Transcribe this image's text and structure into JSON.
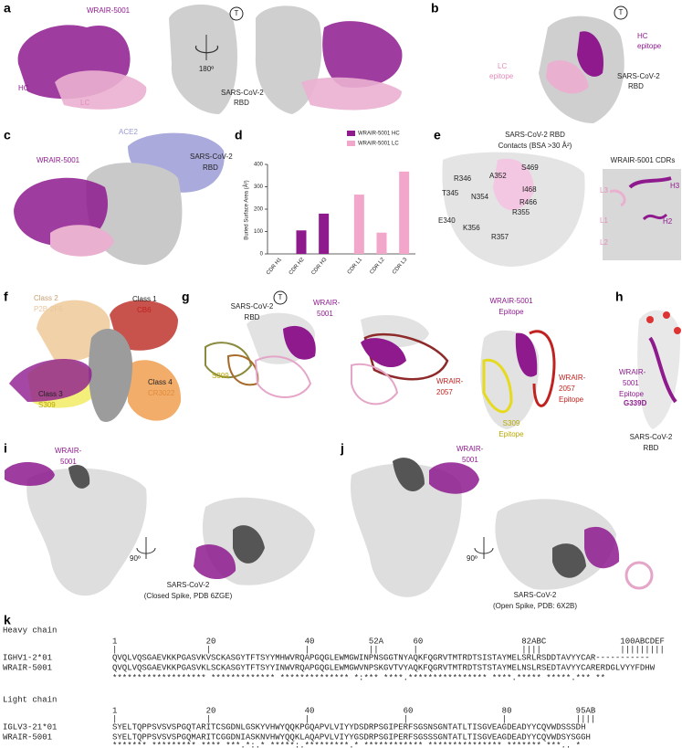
{
  "panel_labels": [
    "a",
    "b",
    "c",
    "d",
    "e",
    "f",
    "g",
    "h",
    "i",
    "j",
    "k"
  ],
  "panel_a": {
    "antibody": "WRAIR-5001",
    "terminus": "T",
    "rotation": "180º",
    "rbd": [
      "SARS-CoV-2",
      "RBD"
    ],
    "heavy_chain": "HC",
    "light_chain": "LC"
  },
  "panel_b": {
    "terminus": "T",
    "hc_epitope": [
      "HC",
      "epitope"
    ],
    "lc_epitope": [
      "LC",
      "epitope"
    ],
    "rbd": [
      "SARS-CoV-2",
      "RBD"
    ]
  },
  "panel_c": {
    "ace2": "ACE2",
    "antibody": "WRAIR-5001",
    "rbd": [
      "SARS-CoV-2",
      "RBD"
    ]
  },
  "chart_data": {
    "type": "bar",
    "ylabel": "Buried Surface Area (Å²)",
    "categories": [
      "CDR H1",
      "CDR H2",
      "CDR H3",
      "CDR L1",
      "CDR L2",
      "CDR L3"
    ],
    "series": [
      {
        "name": "WRAIR-5001 HC",
        "color": "#8e1a8e",
        "values": [
          0,
          105,
          180,
          null,
          null,
          null
        ]
      },
      {
        "name": "WRAIR-5001 LC",
        "color": "#f2a6c9",
        "values": [
          null,
          null,
          null,
          265,
          95,
          368
        ]
      }
    ],
    "ylim": [
      0,
      400
    ],
    "yticks": [
      0,
      100,
      200,
      300,
      400
    ],
    "legend": "top-right"
  },
  "panel_e": {
    "title": [
      "SARS-CoV-2 RBD",
      "Contacts (BSA >30 Å²)"
    ],
    "residues": [
      "A352",
      "S469",
      "R346",
      "I468",
      "T345",
      "N354",
      "R466",
      "R355",
      "E340",
      "K356",
      "R357"
    ],
    "cdr_title": "WRAIR-5001 CDRs",
    "cdrs": [
      "L3",
      "H3",
      "L1",
      "H2",
      "L2"
    ]
  },
  "panel_f": {
    "classes": [
      {
        "class": "Class 2",
        "antibody": "P2B-2F6"
      },
      {
        "class": "Class 1",
        "antibody": "CB6"
      },
      {
        "class": "Class 3",
        "antibody": "S309"
      },
      {
        "class": "Class 4",
        "antibody": "CR3022"
      }
    ]
  },
  "panel_g": {
    "rbd": [
      "SARS-CoV-2",
      "RBD"
    ],
    "terminus": "T",
    "wrair_5001": [
      "WRAIR-",
      "5001"
    ],
    "s309": "S309",
    "wrair_2057": [
      "WRAIR-",
      "2057"
    ],
    "wrair_5001_epitope": [
      "WRAIR-5001",
      "Epitope"
    ],
    "wrair_2057_epitope": [
      "WRAIR-",
      "2057",
      "Epitope"
    ],
    "s309_epitope": [
      "S309",
      "Epitope"
    ]
  },
  "panel_h": {
    "epitope": [
      "WRAIR-",
      "5001",
      "Epitope"
    ],
    "mutation": "G339D",
    "rbd": [
      "SARS-CoV-2",
      "RBD"
    ]
  },
  "panel_i": {
    "antibody": [
      "WRAIR-",
      "5001"
    ],
    "rotation": "90º",
    "caption": [
      "SARS-CoV-2",
      "(Closed Spike, PDB 6ZGE)"
    ]
  },
  "panel_j": {
    "antibody": [
      "WRAIR-",
      "5001"
    ],
    "rotation": "90º",
    "caption": [
      "SARS-CoV-2",
      "(Open Spike, PDB: 6X2B)"
    ]
  },
  "panel_k": {
    "heavy": {
      "title": "Heavy chain",
      "numbering": "1                  20                  40           52A      60                    82ABC               100ABCDEF",
      "ticks": "|                  |                   |            ||       |                     ||||                |||||||||",
      "rows": [
        {
          "name": "IGHV1-2*01",
          "sequence": "QVQLVQSGAEVKKPGASVKVSCKASGYTFTSYYMHWVRQAPGQGLEWMGWINPNSGGTNYAQKFQGRVTMTRDTSISTAYMELSRLRSDDTAVYYCAR-----------"
        },
        {
          "name": "WRAIR-5001",
          "sequence": "QVQLVQSGAEVKKPGASVKLSCKASGYTFTSYYINWVRQAPGQGLEWMGWVNPSKGVTVYAQKFQGRVTMTRDTSTSTAYMELNSLRSEDTAVYYCARERDGLVYYFDHW"
        }
      ],
      "conservation": "******************* ************* ************** *:*** ****.**************** ****.***** *****.*** **"
    },
    "light": {
      "title": "Light chain",
      "numbering": "1                  20                  40                  60                  80             95AB",
      "ticks": "|                  |                   |                   |                   |              ||||",
      "rows": [
        {
          "name": "IGLV3-21*01",
          "sequence": "SYELTQPPSVSVSPGQTARITCSGDNLGSKYVHWYQQKPGQAPVLVIYYDSDRPSGIPERFSGSNSGNTATLTISGVEAGDEADYYCQVWDSSSDH"
        },
        {
          "name": "WRAIR-5001",
          "sequence": "SYELTQPPSVSVSPGQMARITCGGDNIASKNVHWYQQKLAQAPVLVIYYGSDRPSGIPERFSGSSSGNTATLTISGVEAGDEADYYCQVWDSYSGGH"
        }
      ],
      "conservation": "******* ********* **** ***.*:.* *****:.*********.* ************ *************** ******* ***.. *"
    }
  }
}
